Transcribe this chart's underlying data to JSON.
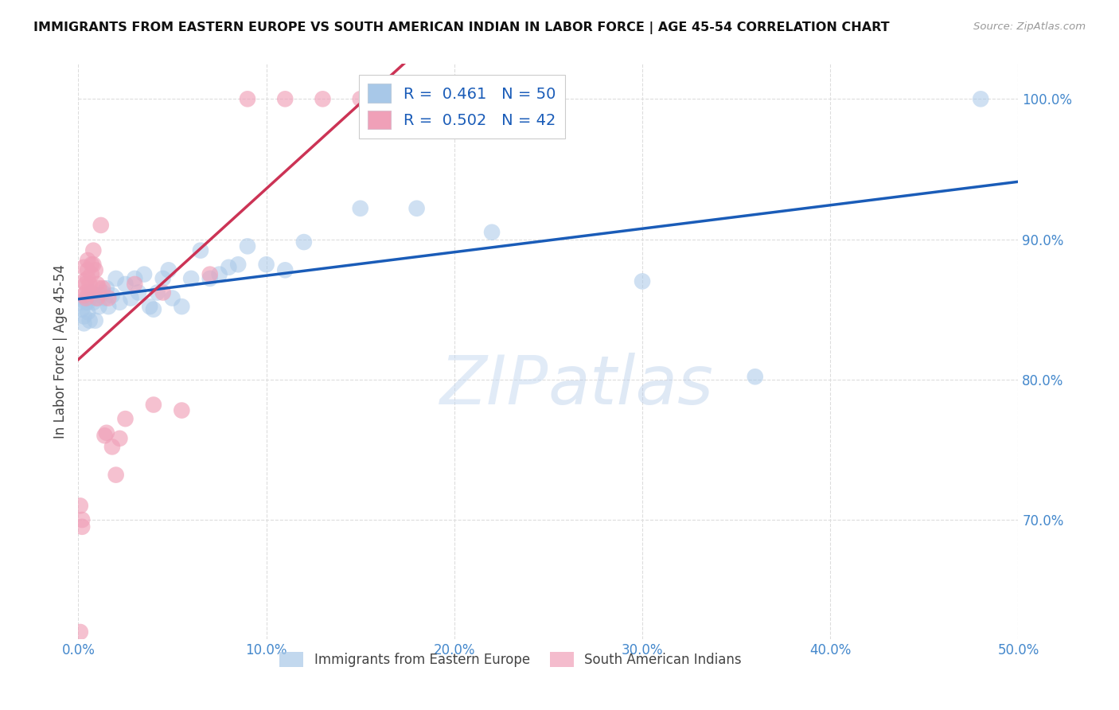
{
  "title": "IMMIGRANTS FROM EASTERN EUROPE VS SOUTH AMERICAN INDIAN IN LABOR FORCE | AGE 45-54 CORRELATION CHART",
  "source": "Source: ZipAtlas.com",
  "ylabel": "In Labor Force | Age 45-54",
  "xlim": [
    0.0,
    0.5
  ],
  "ylim": [
    0.615,
    1.025
  ],
  "xticks": [
    0.0,
    0.1,
    0.2,
    0.3,
    0.4,
    0.5
  ],
  "xticklabels": [
    "0.0%",
    "10.0%",
    "20.0%",
    "30.0%",
    "40.0%",
    "50.0%"
  ],
  "yticks": [
    0.7,
    0.8,
    0.9,
    1.0
  ],
  "yticklabels": [
    "70.0%",
    "80.0%",
    "90.0%",
    "100.0%"
  ],
  "blue_R": "0.461",
  "blue_N": "50",
  "pink_R": "0.502",
  "pink_N": "42",
  "legend_label_blue": "Immigrants from Eastern Europe",
  "legend_label_pink": "South American Indians",
  "blue_color": "#a8c8e8",
  "pink_color": "#f0a0b8",
  "blue_line_color": "#1a5cb8",
  "pink_line_color": "#cc3355",
  "blue_scatter_x": [
    0.001,
    0.002,
    0.003,
    0.003,
    0.004,
    0.005,
    0.005,
    0.006,
    0.006,
    0.007,
    0.008,
    0.009,
    0.01,
    0.011,
    0.012,
    0.013,
    0.014,
    0.015,
    0.016,
    0.018,
    0.02,
    0.022,
    0.025,
    0.028,
    0.03,
    0.032,
    0.035,
    0.038,
    0.04,
    0.042,
    0.045,
    0.048,
    0.05,
    0.055,
    0.06,
    0.065,
    0.07,
    0.075,
    0.08,
    0.085,
    0.09,
    0.1,
    0.11,
    0.12,
    0.15,
    0.18,
    0.22,
    0.3,
    0.36,
    0.48
  ],
  "blue_scatter_y": [
    0.855,
    0.85,
    0.845,
    0.84,
    0.855,
    0.855,
    0.848,
    0.842,
    0.858,
    0.862,
    0.855,
    0.842,
    0.858,
    0.852,
    0.86,
    0.862,
    0.858,
    0.865,
    0.852,
    0.86,
    0.872,
    0.855,
    0.868,
    0.858,
    0.872,
    0.862,
    0.875,
    0.852,
    0.85,
    0.862,
    0.872,
    0.878,
    0.858,
    0.852,
    0.872,
    0.892,
    0.872,
    0.875,
    0.88,
    0.882,
    0.895,
    0.882,
    0.878,
    0.898,
    0.922,
    0.922,
    0.905,
    0.87,
    0.802,
    1.0
  ],
  "pink_scatter_x": [
    0.001,
    0.002,
    0.002,
    0.003,
    0.003,
    0.003,
    0.004,
    0.004,
    0.004,
    0.005,
    0.005,
    0.005,
    0.006,
    0.006,
    0.007,
    0.007,
    0.008,
    0.008,
    0.009,
    0.01,
    0.01,
    0.011,
    0.012,
    0.013,
    0.014,
    0.015,
    0.016,
    0.018,
    0.02,
    0.022,
    0.025,
    0.03,
    0.04,
    0.045,
    0.055,
    0.07,
    0.09,
    0.11,
    0.13,
    0.15,
    0.17,
    0.001
  ],
  "pink_scatter_y": [
    0.62,
    0.695,
    0.7,
    0.86,
    0.87,
    0.88,
    0.858,
    0.862,
    0.868,
    0.872,
    0.878,
    0.885,
    0.862,
    0.868,
    0.875,
    0.882,
    0.892,
    0.882,
    0.878,
    0.868,
    0.858,
    0.865,
    0.91,
    0.865,
    0.76,
    0.762,
    0.858,
    0.752,
    0.732,
    0.758,
    0.772,
    0.868,
    0.782,
    0.862,
    0.778,
    0.875,
    1.0,
    1.0,
    1.0,
    1.0,
    1.0,
    0.71
  ],
  "watermark_zip": "ZIP",
  "watermark_atlas": "atlas",
  "background_color": "#ffffff",
  "grid_color": "#dddddd",
  "tick_color": "#4488cc",
  "fig_width": 14.06,
  "fig_height": 8.92
}
